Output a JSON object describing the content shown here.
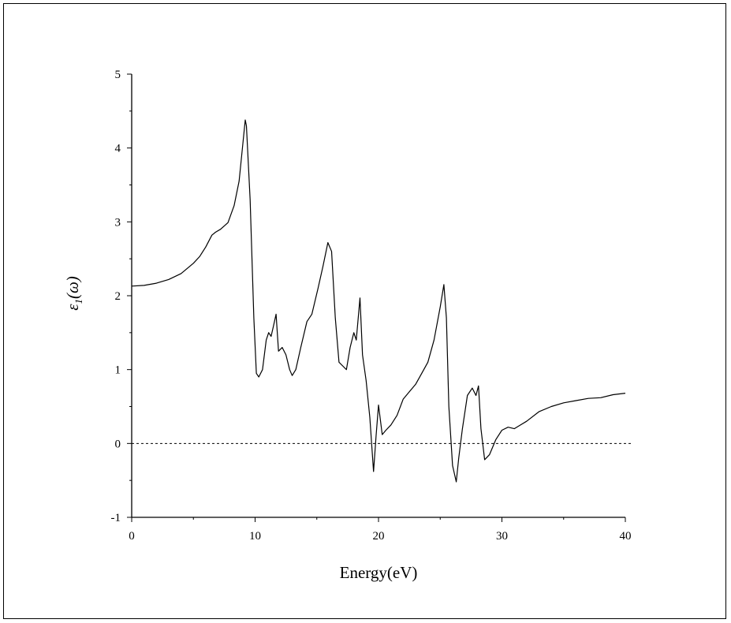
{
  "chart_data": {
    "type": "line",
    "title": "",
    "xlabel": "Energy(eV)",
    "ylabel": "ε1(ω)",
    "ylabel_parts": {
      "symbol": "ε",
      "subscript": "1",
      "argument": "(ω)"
    },
    "xlim": [
      0,
      40
    ],
    "ylim": [
      -1,
      5
    ],
    "xticks": [
      0,
      10,
      20,
      30,
      40
    ],
    "yticks": [
      -1,
      0,
      1,
      2,
      3,
      4,
      5
    ],
    "grid": false,
    "legend": "none",
    "reference_line": {
      "y": 0,
      "style": "dashed"
    },
    "series": [
      {
        "color": "#000000",
        "x": [
          0,
          1,
          2,
          3,
          4,
          5,
          5.5,
          6,
          6.5,
          6.8,
          7.2,
          7.8,
          8.3,
          8.7,
          9.0,
          9.2,
          9.3,
          9.6,
          9.9,
          10.1,
          10.3,
          10.6,
          10.9,
          11.1,
          11.3,
          11.5,
          11.7,
          11.9,
          12.2,
          12.5,
          12.8,
          13.0,
          13.3,
          13.7,
          14.2,
          14.6,
          15.1,
          15.5,
          15.9,
          16.2,
          16.5,
          16.8,
          17.1,
          17.4,
          17.7,
          18.0,
          18.2,
          18.5,
          18.7,
          19.0,
          19.3,
          19.6,
          19.8,
          20.0,
          20.3,
          20.6,
          21.0,
          21.5,
          22.0,
          22.5,
          23.0,
          23.5,
          24.0,
          24.5,
          25.0,
          25.3,
          25.5,
          25.7,
          26.0,
          26.3,
          26.5,
          26.8,
          27.2,
          27.6,
          27.9,
          28.1,
          28.3,
          28.6,
          29.0,
          29.5,
          30.0,
          30.5,
          31.0,
          31.5,
          32.0,
          33.0,
          34.0,
          35.0,
          36.0,
          37.0,
          38.0,
          39.0,
          40.0
        ],
        "y": [
          2.13,
          2.14,
          2.17,
          2.22,
          2.3,
          2.44,
          2.53,
          2.66,
          2.82,
          2.86,
          2.9,
          2.99,
          3.22,
          3.55,
          4.05,
          4.38,
          4.3,
          3.3,
          1.7,
          0.95,
          0.9,
          1.0,
          1.4,
          1.5,
          1.45,
          1.6,
          1.75,
          1.25,
          1.3,
          1.2,
          1.0,
          0.92,
          1.0,
          1.3,
          1.65,
          1.75,
          2.1,
          2.4,
          2.72,
          2.6,
          1.7,
          1.1,
          1.05,
          1.0,
          1.3,
          1.5,
          1.4,
          1.97,
          1.2,
          0.85,
          0.35,
          -0.38,
          0.1,
          0.52,
          0.12,
          0.18,
          0.25,
          0.38,
          0.6,
          0.7,
          0.8,
          0.95,
          1.1,
          1.4,
          1.85,
          2.15,
          1.7,
          0.5,
          -0.3,
          -0.52,
          -0.2,
          0.2,
          0.65,
          0.75,
          0.65,
          0.78,
          0.2,
          -0.22,
          -0.15,
          0.05,
          0.18,
          0.22,
          0.2,
          0.25,
          0.3,
          0.43,
          0.5,
          0.55,
          0.58,
          0.61,
          0.62,
          0.66,
          0.68
        ]
      }
    ]
  }
}
